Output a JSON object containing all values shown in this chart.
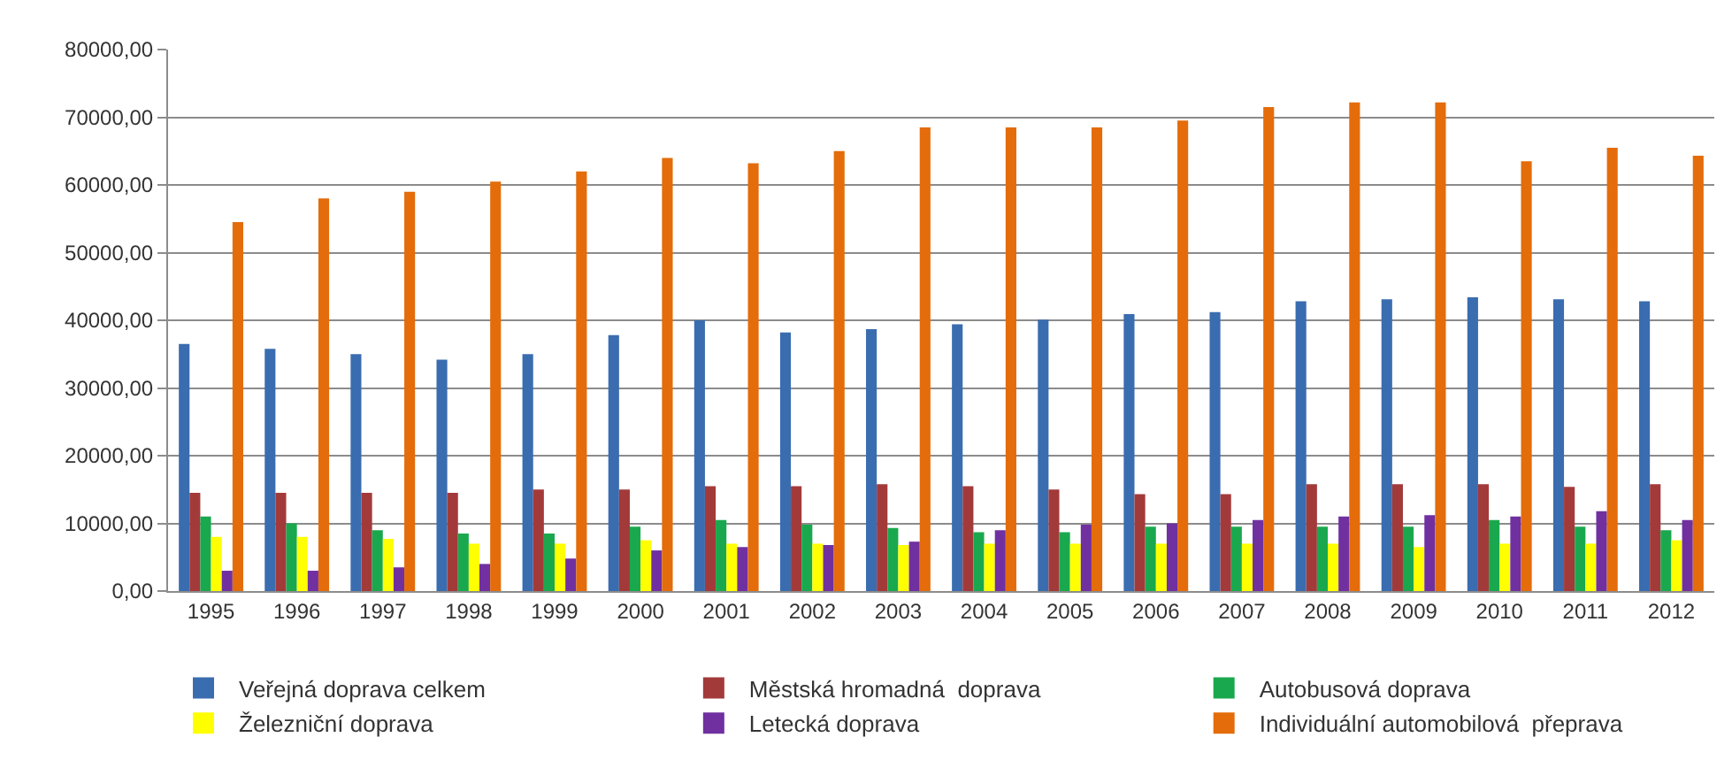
{
  "chart_data": {
    "type": "bar",
    "categories": [
      "1995",
      "1996",
      "1997",
      "1998",
      "1999",
      "2000",
      "2001",
      "2002",
      "2003",
      "2004",
      "2005",
      "2006",
      "2007",
      "2008",
      "2009",
      "2010",
      "2011",
      "2012"
    ],
    "series": [
      {
        "name": "Veřejná doprava celkem",
        "color": "#3a6cb0",
        "values": [
          36500,
          35800,
          35000,
          34200,
          35000,
          37800,
          40000,
          38200,
          38700,
          39400,
          40100,
          40900,
          41200,
          42800,
          43100,
          43400,
          43100,
          42800
        ]
      },
      {
        "name": "Městská hromadná  doprava",
        "color": "#a33a3a",
        "values": [
          14500,
          14500,
          14500,
          14500,
          15000,
          15000,
          15500,
          15500,
          15800,
          15500,
          15000,
          14300,
          14300,
          15800,
          15800,
          15800,
          15400,
          15800
        ]
      },
      {
        "name": "Autobusová doprava",
        "color": "#1aa84e",
        "values": [
          11000,
          10000,
          9000,
          8500,
          8500,
          9500,
          10500,
          9800,
          9300,
          8700,
          8700,
          9500,
          9500,
          9500,
          9500,
          10500,
          9500,
          9000
        ]
      },
      {
        "name": "Železniční doprava",
        "color": "#ffff00",
        "values": [
          8000,
          8000,
          7700,
          7000,
          7000,
          7500,
          7000,
          7000,
          6800,
          7000,
          7000,
          7000,
          7000,
          7000,
          6500,
          7000,
          7000,
          7500
        ]
      },
      {
        "name": "Letecká doprava",
        "color": "#7030a0",
        "values": [
          3000,
          3000,
          3500,
          4000,
          4800,
          6000,
          6500,
          6800,
          7300,
          9000,
          9800,
          10000,
          10500,
          11000,
          11200,
          11000,
          11800,
          10500
        ]
      },
      {
        "name": "Individuální automobilová  přeprava",
        "color": "#e46c0a",
        "values": [
          54500,
          58000,
          59000,
          60500,
          62000,
          64000,
          63200,
          65000,
          68500,
          68500,
          68500,
          69500,
          71500,
          72200,
          72200,
          63500,
          65500,
          64300
        ]
      }
    ],
    "ylim": [
      0,
      80000
    ],
    "yticks": [
      {
        "value": 0,
        "label": "0,00"
      },
      {
        "value": 10000,
        "label": "10000,00"
      },
      {
        "value": 20000,
        "label": "20000,00"
      },
      {
        "value": 30000,
        "label": "30000,00"
      },
      {
        "value": 40000,
        "label": "40000,00"
      },
      {
        "value": 50000,
        "label": "50000,00"
      },
      {
        "value": 60000,
        "label": "60000,00"
      },
      {
        "value": 70000,
        "label": "70000,00"
      },
      {
        "value": 80000,
        "label": "80000,00"
      }
    ],
    "grid": "y",
    "legend": "bottom"
  }
}
